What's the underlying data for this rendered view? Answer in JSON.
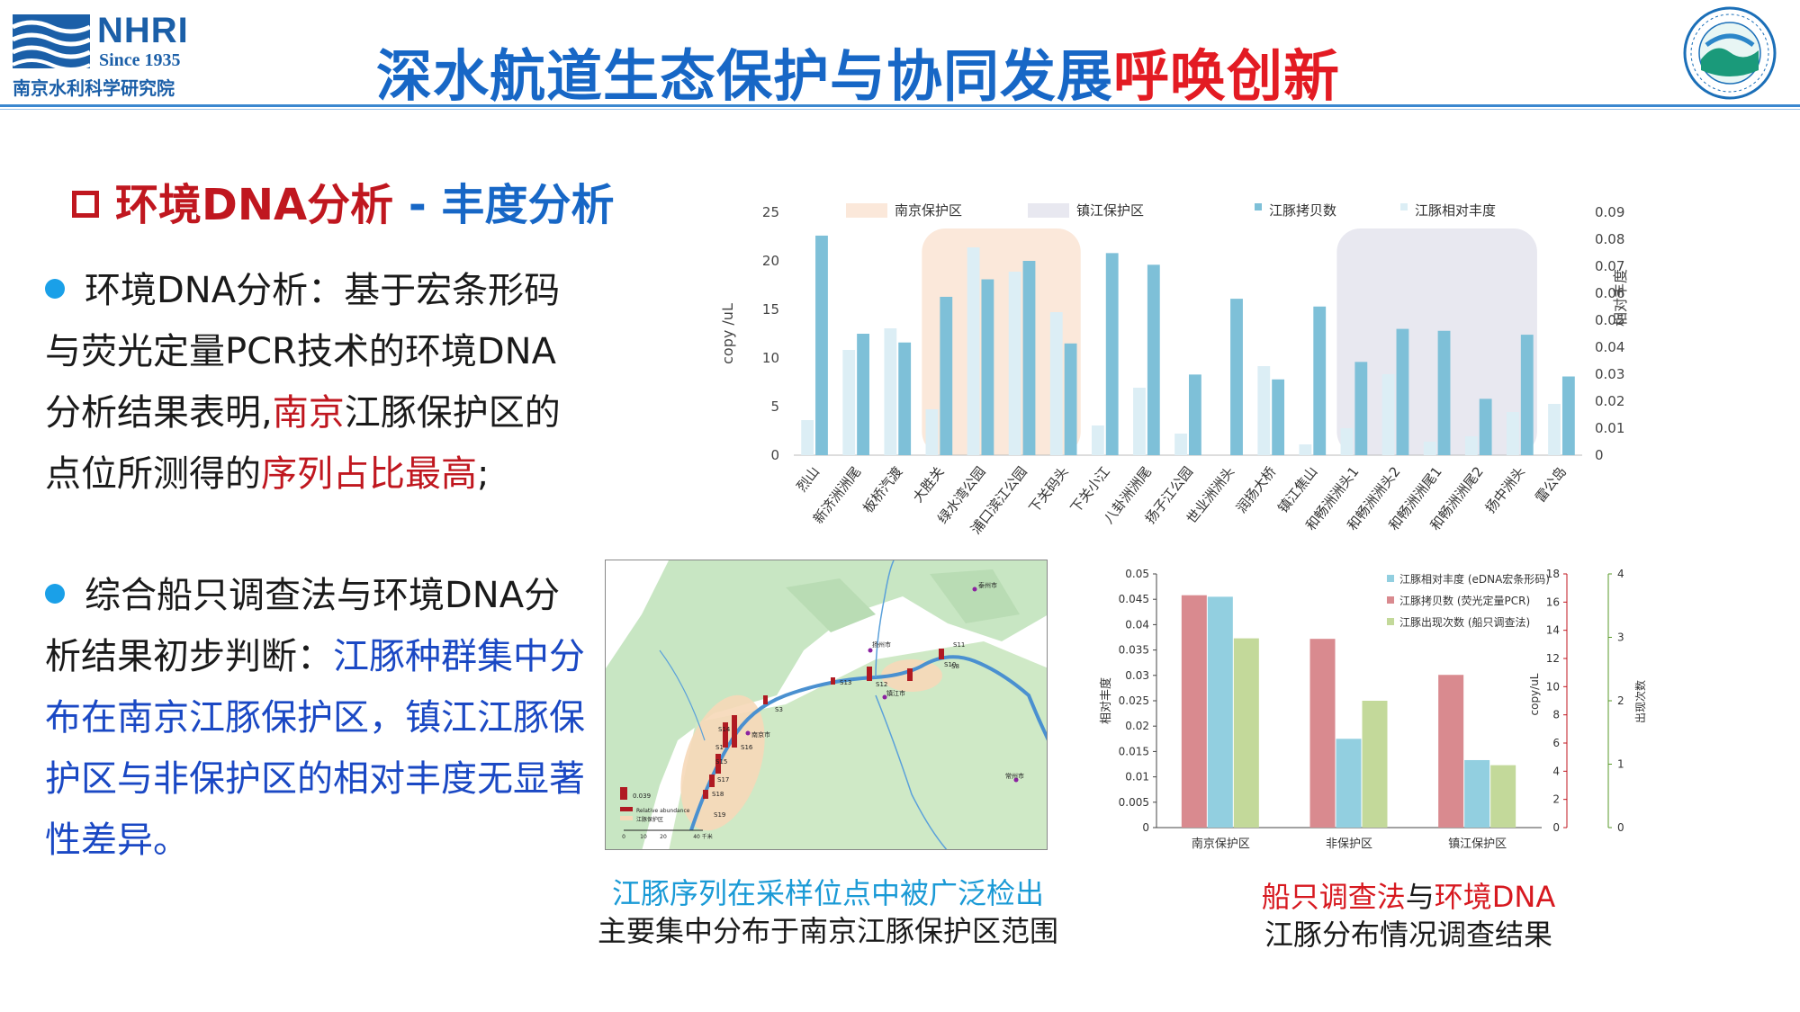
{
  "header": {
    "logo_text": "NHRI",
    "logo_since": "Since 1935",
    "logo_org": "南京水利科学研究院",
    "title_main": "深水航道生态保护与协同发展",
    "title_highlight": "呼唤创新"
  },
  "section": {
    "title_red": "环境DNA分析",
    "title_dash": " - ",
    "title_blue": "丰度分析"
  },
  "bullet1": {
    "p1": "环境DNA分析：基于宏条形码与荧光定量PCR技术的环境DNA分析结果表明,",
    "p2_red": "南京",
    "p3": "江豚保护区的点位所测得的",
    "p4_red": "序列占比最高",
    "p5": ";"
  },
  "bullet2": {
    "p1": "综合船只调查法与环境DNA分析结果初步判断：",
    "p2_blue": "江豚种群集中分布在南京江豚保护区，镇江江豚保护区与非保护区的相对丰度无显著性差异。"
  },
  "colors": {
    "title_blue": "#1767c6",
    "accent_red": "#e31b23",
    "copy_bar": "#7ec0d8",
    "rel_bar": "#dceef5",
    "nanjing_zone": "#fbe8da",
    "zhenjiang_zone": "#e8e8f0",
    "rel_abund_bar": "#92cfe0",
    "copy_bar_2": "#d98a8f",
    "occurrence_bar": "#c3d99a"
  },
  "chart_data": [
    {
      "type": "bar",
      "categories": [
        "烈山",
        "新济洲洲尾",
        "板桥汽渡",
        "大胜关",
        "绿水湾公园",
        "浦口滨江公园",
        "下关码头",
        "下关小江",
        "八卦洲洲尾",
        "扬子江公园",
        "世业洲洲头",
        "润扬大桥",
        "镇江焦山",
        "和畅洲洲头1",
        "和畅洲洲头2",
        "和畅洲洲尾1",
        "和畅洲洲尾2",
        "扬中洲头",
        "雷公岛"
      ],
      "series": [
        {
          "name": "江豚拷贝数",
          "axis": "left",
          "values": [
            22.6,
            12.5,
            11.6,
            16.3,
            18.1,
            20.0,
            11.5,
            20.8,
            19.6,
            8.3,
            16.1,
            7.8,
            15.3,
            9.6,
            13.0,
            12.8,
            5.8,
            12.4,
            8.1
          ]
        },
        {
          "name": "江豚相对丰度",
          "axis": "right",
          "values": [
            0.013,
            0.039,
            0.047,
            0.017,
            0.077,
            0.068,
            0.053,
            0.011,
            0.025,
            0.008,
            0.0,
            0.033,
            0.004,
            0.01,
            0.03,
            0.005,
            0.007,
            0.016,
            0.019
          ]
        }
      ],
      "zones": [
        {
          "name": "南京保护区",
          "from": "大胜关",
          "to": "下关码头"
        },
        {
          "name": "镇江保护区",
          "from": "和畅洲洲头1",
          "to": "扬中洲头"
        }
      ],
      "ylabel_left": "copy /uL",
      "ylabel_right": "相对丰度",
      "ylim_left": [
        0,
        25
      ],
      "yticks_left": [
        "0",
        "5",
        "10",
        "15",
        "20",
        "25"
      ],
      "ylim_right": [
        0,
        0.09
      ],
      "yticks_right": [
        "0",
        "0.01",
        "0.02",
        "0.03",
        "0.04",
        "0.05",
        "0.06",
        "0.07",
        "0.08",
        "0.09"
      ],
      "legend_placement": "top",
      "grid": false
    },
    {
      "type": "bar",
      "categories": [
        "南京保护区",
        "非保护区",
        "镇江保护区"
      ],
      "series": [
        {
          "name": "江豚相对丰度 (eDNA宏条形码)",
          "axis": "left",
          "values": [
            0.0455,
            0.0175,
            0.0133
          ]
        },
        {
          "name": "江豚拷贝数 (荧光定量PCR)",
          "axis": "right1",
          "values": [
            0.0458,
            0.0372,
            0.0301
          ]
        },
        {
          "name": "江豚出现次数 (船只调查法)",
          "axis": "right2",
          "values": [
            0.0373,
            0.025,
            0.0123
          ]
        }
      ],
      "ylabel_left": "相对丰度",
      "ylabel_right1": "copy/uL",
      "ylabel_right2": "出现次数",
      "ylim_left": [
        0,
        0.05
      ],
      "yticks_left": [
        "0",
        "0.005",
        "0.01",
        "0.015",
        "0.02",
        "0.025",
        "0.03",
        "0.035",
        "0.04",
        "0.045",
        "0.05"
      ],
      "yticks_right1": [
        "0",
        "2",
        "4",
        "6",
        "8",
        "10",
        "12",
        "14",
        "16",
        "18"
      ],
      "yticks_right2": [
        "0",
        "1",
        "2",
        "3",
        "4"
      ],
      "legend_placement": "top-right",
      "grid": false
    }
  ],
  "map": {
    "sites": [
      "S1",
      "S3",
      "S8",
      "S10",
      "S11",
      "S12",
      "S13",
      "S14",
      "S15",
      "S16",
      "S17",
      "S18",
      "S19"
    ],
    "cities": [
      "南京市",
      "扬州市",
      "镇江市",
      "泰州市",
      "常州市"
    ],
    "legend_value": "0.039",
    "legend_bar": "Relative abundance",
    "legend_zone": "江豚保护区",
    "scale_ticks": [
      "0",
      "10",
      "20",
      "40 千米"
    ]
  },
  "captions": {
    "map_1": "江豚序列在采样位点中被广泛检出",
    "map_2": "主要集中分布于南京江豚保护区范围",
    "chart_1a": "船只调查法",
    "chart_1b": "与",
    "chart_1c": "环境DNA",
    "chart_2": "江豚分布情况调查结果"
  }
}
